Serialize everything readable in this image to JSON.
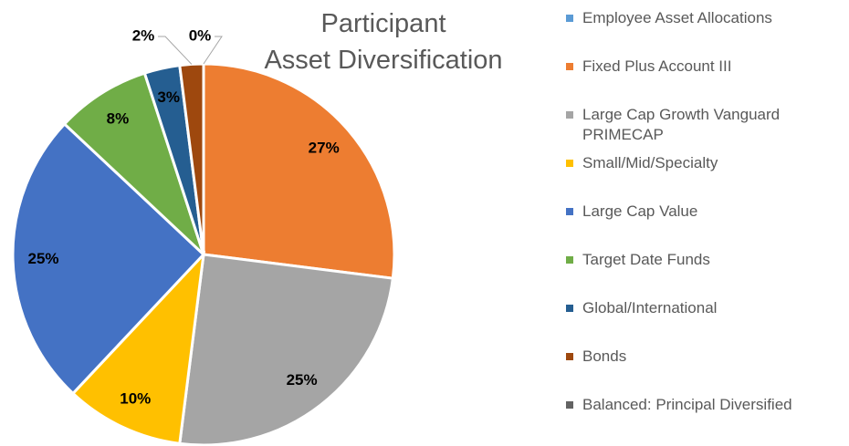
{
  "chart_data": {
    "type": "pie",
    "title": [
      "Participant",
      "Asset Diversification"
    ],
    "categories": [
      "Employee Asset Allocations",
      "Fixed Plus Account III",
      "Large Cap Growth Vanguard PRIMECAP",
      "Small/Mid/Specialty",
      "Large Cap Value",
      "Target Date Funds",
      "Global/International",
      "Bonds",
      "Balanced: Principal Diversified"
    ],
    "values": [
      0,
      27,
      25,
      10,
      25,
      8,
      3,
      2,
      0
    ],
    "value_labels": [
      null,
      "27%",
      "25%",
      "10%",
      "25%",
      "8%",
      "3%",
      "2%",
      "0%"
    ],
    "colors": [
      "#5b9bd5",
      "#ed7d31",
      "#a5a5a5",
      "#ffc000",
      "#4472c4",
      "#70ad47",
      "#255e91",
      "#9e480e",
      "#636363"
    ],
    "legend": "right"
  }
}
